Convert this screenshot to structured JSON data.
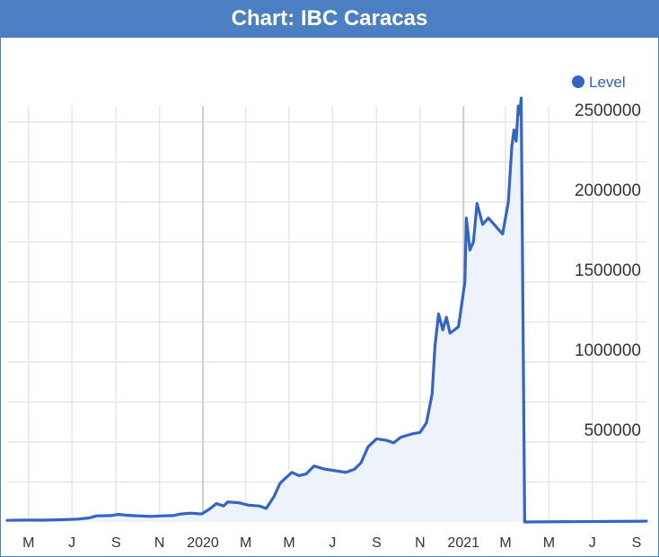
{
  "title": "Chart: IBC Caracas",
  "colors": {
    "header_bg": "#4a7fc1",
    "line": "#3366c2",
    "area_fill": "#eef3fb",
    "grid": "#e6e6e6",
    "year_grid": "#cccccc"
  },
  "chart_data": {
    "type": "line",
    "title": "",
    "xlabel": "",
    "ylabel": "",
    "legend": {
      "position": "top-right",
      "entries": [
        "Level"
      ]
    },
    "grid": true,
    "x_range": [
      "2019-04-01",
      "2021-09-15"
    ],
    "ylim": [
      0,
      2600000
    ],
    "y_ticks": [
      {
        "label": "2500000",
        "value": 2500000
      },
      {
        "label": "2000000",
        "value": 2000000
      },
      {
        "label": "1500000",
        "value": 1500000
      },
      {
        "label": "1000000",
        "value": 1000000
      },
      {
        "label": "500000",
        "value": 500000
      }
    ],
    "x_ticks": [
      {
        "label": "M",
        "date": "2019-05-01"
      },
      {
        "label": "J",
        "date": "2019-07-01"
      },
      {
        "label": "S",
        "date": "2019-09-01"
      },
      {
        "label": "N",
        "date": "2019-11-01"
      },
      {
        "label": "2020",
        "date": "2020-01-01",
        "major": true
      },
      {
        "label": "M",
        "date": "2020-03-01"
      },
      {
        "label": "M",
        "date": "2020-05-01"
      },
      {
        "label": "J",
        "date": "2020-07-01"
      },
      {
        "label": "S",
        "date": "2020-09-01"
      },
      {
        "label": "N",
        "date": "2020-11-01"
      },
      {
        "label": "2021",
        "date": "2021-01-01",
        "major": true
      },
      {
        "label": "M",
        "date": "2021-03-01"
      },
      {
        "label": "M",
        "date": "2021-05-01"
      },
      {
        "label": "J",
        "date": "2021-07-01"
      },
      {
        "label": "S",
        "date": "2021-09-01"
      }
    ],
    "series": [
      {
        "name": "Level",
        "points": [
          [
            "2019-04-01",
            10000
          ],
          [
            "2019-04-25",
            12000
          ],
          [
            "2019-05-20",
            11000
          ],
          [
            "2019-06-15",
            14000
          ],
          [
            "2019-07-10",
            18000
          ],
          [
            "2019-07-25",
            25000
          ],
          [
            "2019-08-05",
            38000
          ],
          [
            "2019-08-25",
            40000
          ],
          [
            "2019-09-05",
            48000
          ],
          [
            "2019-09-15",
            42000
          ],
          [
            "2019-10-01",
            38000
          ],
          [
            "2019-10-20",
            35000
          ],
          [
            "2019-11-05",
            38000
          ],
          [
            "2019-11-20",
            40000
          ],
          [
            "2019-12-01",
            50000
          ],
          [
            "2019-12-15",
            55000
          ],
          [
            "2019-12-30",
            50000
          ],
          [
            "2020-01-10",
            80000
          ],
          [
            "2020-01-20",
            115000
          ],
          [
            "2020-01-30",
            100000
          ],
          [
            "2020-02-05",
            125000
          ],
          [
            "2020-02-20",
            120000
          ],
          [
            "2020-03-05",
            105000
          ],
          [
            "2020-03-20",
            100000
          ],
          [
            "2020-03-30",
            85000
          ],
          [
            "2020-04-10",
            160000
          ],
          [
            "2020-04-18",
            240000
          ],
          [
            "2020-04-25",
            270000
          ],
          [
            "2020-05-05",
            310000
          ],
          [
            "2020-05-15",
            290000
          ],
          [
            "2020-05-25",
            300000
          ],
          [
            "2020-06-05",
            350000
          ],
          [
            "2020-06-20",
            330000
          ],
          [
            "2020-07-05",
            320000
          ],
          [
            "2020-07-20",
            310000
          ],
          [
            "2020-08-01",
            330000
          ],
          [
            "2020-08-10",
            370000
          ],
          [
            "2020-08-20",
            470000
          ],
          [
            "2020-09-01",
            520000
          ],
          [
            "2020-09-15",
            510000
          ],
          [
            "2020-09-25",
            495000
          ],
          [
            "2020-10-05",
            530000
          ],
          [
            "2020-10-20",
            550000
          ],
          [
            "2020-11-01",
            560000
          ],
          [
            "2020-11-10",
            620000
          ],
          [
            "2020-11-18",
            800000
          ],
          [
            "2020-11-22",
            1100000
          ],
          [
            "2020-11-27",
            1300000
          ],
          [
            "2020-12-03",
            1200000
          ],
          [
            "2020-12-08",
            1280000
          ],
          [
            "2020-12-13",
            1180000
          ],
          [
            "2020-12-25",
            1220000
          ],
          [
            "2021-01-03",
            1500000
          ],
          [
            "2021-01-05",
            1900000
          ],
          [
            "2021-01-10",
            1700000
          ],
          [
            "2021-01-15",
            1750000
          ],
          [
            "2021-01-20",
            1990000
          ],
          [
            "2021-01-28",
            1860000
          ],
          [
            "2021-02-05",
            1900000
          ],
          [
            "2021-02-15",
            1850000
          ],
          [
            "2021-02-25",
            1800000
          ],
          [
            "2021-03-05",
            2000000
          ],
          [
            "2021-03-10",
            2350000
          ],
          [
            "2021-03-13",
            2450000
          ],
          [
            "2021-03-16",
            2380000
          ],
          [
            "2021-03-19",
            2600000
          ],
          [
            "2021-03-21",
            2550000
          ],
          [
            "2021-03-23",
            2650000
          ],
          [
            "2021-03-28",
            0
          ],
          [
            "2021-09-15",
            5000
          ]
        ]
      }
    ]
  }
}
